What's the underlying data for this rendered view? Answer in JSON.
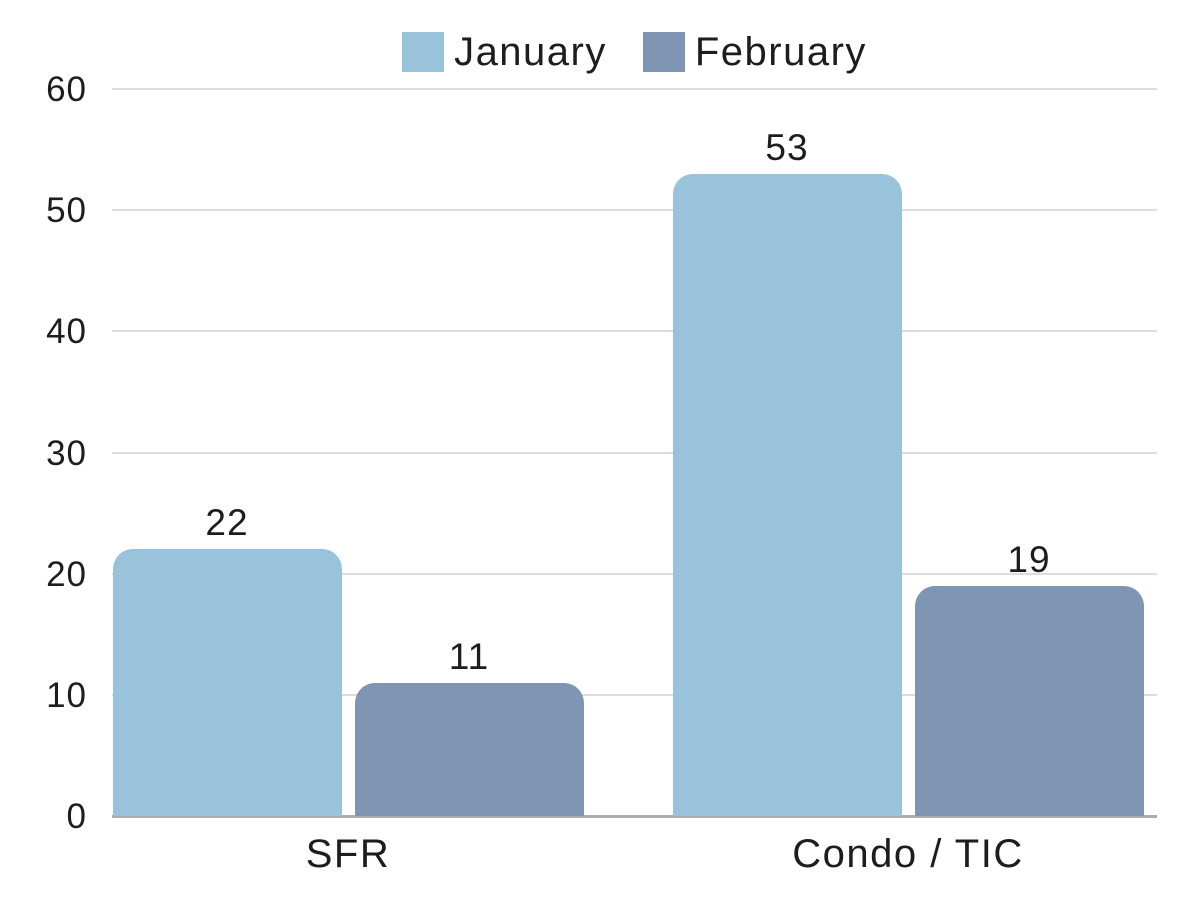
{
  "chart_data": {
    "type": "bar",
    "categories": [
      "SFR",
      "Condo / TIC"
    ],
    "series": [
      {
        "name": "January",
        "color": "#99C2DB",
        "values": [
          22,
          53
        ]
      },
      {
        "name": "February",
        "color": "#7E96B3",
        "values": [
          11,
          19
        ]
      }
    ],
    "title": "",
    "xlabel": "",
    "ylabel": "",
    "ylim": [
      0,
      60
    ],
    "yticks": [
      0,
      10,
      20,
      30,
      40,
      50,
      60
    ],
    "grid": true,
    "legend_position": "top-center",
    "value_labels": true,
    "colors": {
      "gridline": "#dddddd",
      "baseline": "#adadad",
      "text": "#1d1d1d"
    }
  }
}
